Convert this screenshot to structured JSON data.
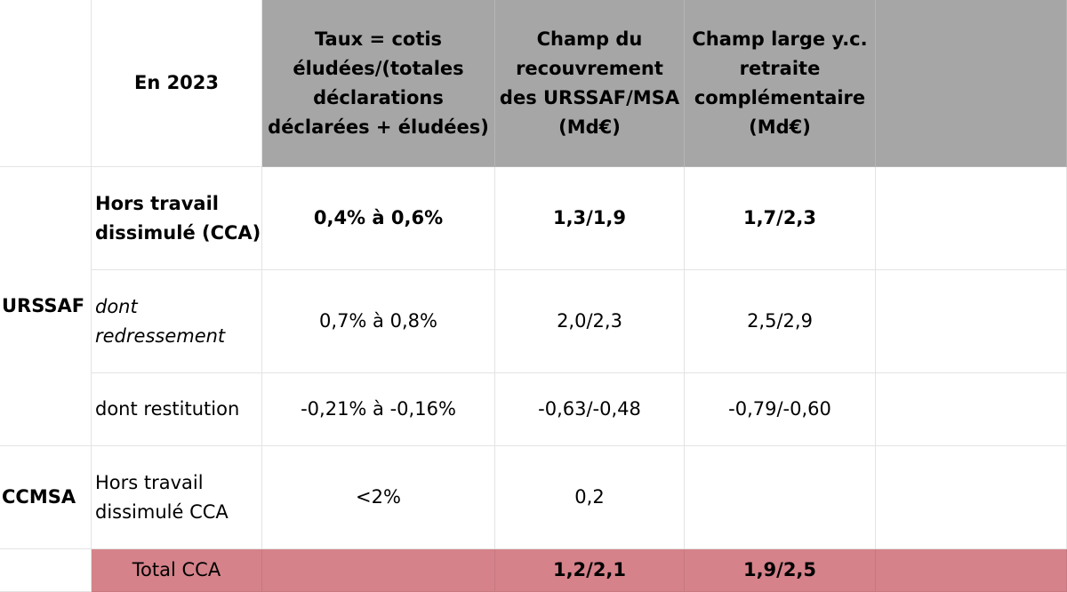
{
  "header": {
    "year": "En 2023",
    "col_rate": "Taux = cotis éludées/(totales déclarations déclarées + éludées)",
    "col_urssaf": "Champ du recouvrement des URSSAF/MSA (Md€)",
    "col_large": "Champ large y.c. retraite complémentaire (Md€)"
  },
  "groups": {
    "urssaf": "URSSAF",
    "ccmsa": "CCMSA"
  },
  "rows": [
    {
      "label": "Hors travail dissimulé (CCA)",
      "rate": "0,4% à 0,6%",
      "urssaf": "1,3/1,9",
      "large": "1,7/2,3"
    },
    {
      "label": "dont redressement",
      "rate": "0,7% à 0,8%",
      "urssaf": "2,0/2,3",
      "large": "2,5/2,9"
    },
    {
      "label": "dont restitution",
      "rate": "-0,21% à -0,16%",
      "urssaf": "-0,63/-0,48",
      "large": "-0,79/-0,60"
    },
    {
      "label": "Hors travail dissimulé CCA",
      "rate": "<2%",
      "urssaf": "0,2",
      "large": ""
    }
  ],
  "total": {
    "label": "Total CCA",
    "rate": "",
    "urssaf": "1,2/2,1",
    "large": "1,9/2,5"
  },
  "colors": {
    "header_bg": "#a6a6a6",
    "total_bg": "#d5828a",
    "grid": "#e3e3e3"
  }
}
